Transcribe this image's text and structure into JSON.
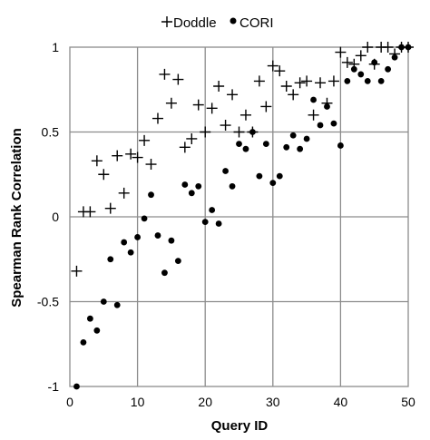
{
  "chart_data": {
    "type": "scatter",
    "xlabel": "Query ID",
    "ylabel": "Spearman Rank Correlation",
    "xlim": [
      0,
      50
    ],
    "ylim": [
      -1,
      1
    ],
    "xticks": [
      "0",
      "10",
      "20",
      "30",
      "40",
      "50"
    ],
    "yticks": [
      "-1",
      "-0.5",
      "0",
      "0.5",
      "1"
    ],
    "grid": "vertical and horizontal",
    "legend_position": "top",
    "series": [
      {
        "name": "Doddle",
        "marker": "plus",
        "points": [
          [
            1,
            -0.32
          ],
          [
            2,
            0.03
          ],
          [
            3,
            0.03
          ],
          [
            4,
            0.33
          ],
          [
            5,
            0.25
          ],
          [
            6,
            0.05
          ],
          [
            7,
            0.36
          ],
          [
            8,
            0.14
          ],
          [
            9,
            0.37
          ],
          [
            10,
            0.35
          ],
          [
            11,
            0.45
          ],
          [
            12,
            0.31
          ],
          [
            13,
            0.58
          ],
          [
            14,
            0.84
          ],
          [
            15,
            0.67
          ],
          [
            16,
            0.81
          ],
          [
            17,
            0.41
          ],
          [
            18,
            0.46
          ],
          [
            19,
            0.66
          ],
          [
            20,
            0.5
          ],
          [
            21,
            0.64
          ],
          [
            22,
            0.77
          ],
          [
            23,
            0.54
          ],
          [
            24,
            0.72
          ],
          [
            25,
            0.5
          ],
          [
            26,
            0.6
          ],
          [
            27,
            0.5
          ],
          [
            28,
            0.8
          ],
          [
            29,
            0.65
          ],
          [
            30,
            0.89
          ],
          [
            31,
            0.86
          ],
          [
            32,
            0.77
          ],
          [
            33,
            0.72
          ],
          [
            34,
            0.79
          ],
          [
            35,
            0.8
          ],
          [
            36,
            0.6
          ],
          [
            37,
            0.79
          ],
          [
            38,
            0.67
          ],
          [
            39,
            0.8
          ],
          [
            40,
            0.97
          ],
          [
            41,
            0.91
          ],
          [
            42,
            0.9
          ],
          [
            43,
            0.95
          ],
          [
            44,
            1.0
          ],
          [
            45,
            0.9
          ],
          [
            46,
            1.0
          ],
          [
            47,
            1.0
          ],
          [
            48,
            0.96
          ],
          [
            49,
            1.0
          ],
          [
            50,
            1.0
          ]
        ]
      },
      {
        "name": "CORI",
        "marker": "dot",
        "points": [
          [
            1,
            -1.0
          ],
          [
            2,
            -0.74
          ],
          [
            3,
            -0.6
          ],
          [
            4,
            -0.67
          ],
          [
            5,
            -0.5
          ],
          [
            6,
            -0.25
          ],
          [
            7,
            -0.52
          ],
          [
            8,
            -0.15
          ],
          [
            9,
            -0.21
          ],
          [
            10,
            -0.12
          ],
          [
            11,
            -0.01
          ],
          [
            12,
            0.13
          ],
          [
            13,
            -0.11
          ],
          [
            14,
            -0.33
          ],
          [
            15,
            -0.14
          ],
          [
            16,
            -0.26
          ],
          [
            17,
            0.19
          ],
          [
            18,
            0.14
          ],
          [
            19,
            0.18
          ],
          [
            20,
            -0.03
          ],
          [
            21,
            0.04
          ],
          [
            22,
            -0.04
          ],
          [
            23,
            0.27
          ],
          [
            24,
            0.18
          ],
          [
            25,
            0.43
          ],
          [
            26,
            0.4
          ],
          [
            27,
            0.5
          ],
          [
            28,
            0.24
          ],
          [
            29,
            0.43
          ],
          [
            30,
            0.2
          ],
          [
            31,
            0.24
          ],
          [
            32,
            0.41
          ],
          [
            33,
            0.48
          ],
          [
            34,
            0.4
          ],
          [
            35,
            0.46
          ],
          [
            36,
            0.69
          ],
          [
            37,
            0.54
          ],
          [
            38,
            0.65
          ],
          [
            39,
            0.55
          ],
          [
            40,
            0.42
          ],
          [
            41,
            0.8
          ],
          [
            42,
            0.87
          ],
          [
            43,
            0.84
          ],
          [
            44,
            0.8
          ],
          [
            45,
            0.91
          ],
          [
            46,
            0.8
          ],
          [
            47,
            0.87
          ],
          [
            48,
            0.94
          ],
          [
            49,
            1.0
          ],
          [
            50,
            1.0
          ]
        ]
      }
    ]
  }
}
